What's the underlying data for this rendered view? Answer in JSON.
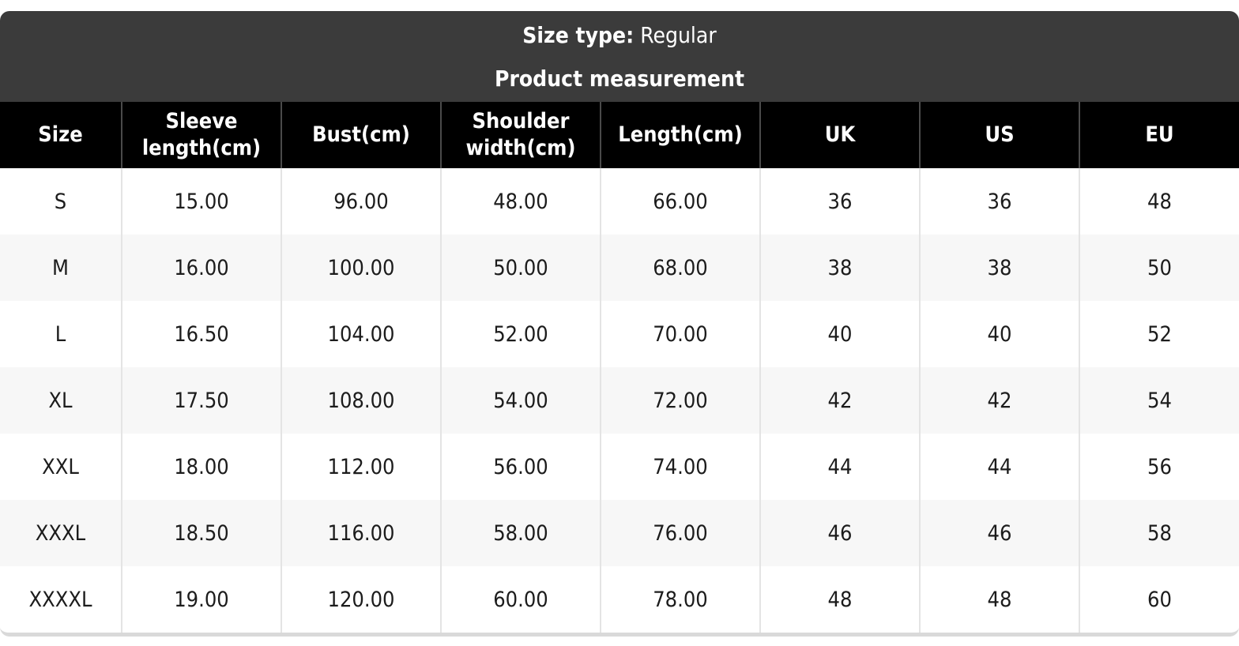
{
  "banner": {
    "size_type_label": "Size type:",
    "size_type_value": "Regular",
    "title": "Product measurement"
  },
  "table": {
    "columns": [
      "Size",
      "Sleeve length(cm)",
      "Bust(cm)",
      "Shoulder width(cm)",
      "Length(cm)",
      "UK",
      "US",
      "EU"
    ],
    "rows": [
      [
        "S",
        "15.00",
        "96.00",
        "48.00",
        "66.00",
        "36",
        "36",
        "48"
      ],
      [
        "M",
        "16.00",
        "100.00",
        "50.00",
        "68.00",
        "38",
        "38",
        "50"
      ],
      [
        "L",
        "16.50",
        "104.00",
        "52.00",
        "70.00",
        "40",
        "40",
        "52"
      ],
      [
        "XL",
        "17.50",
        "108.00",
        "54.00",
        "72.00",
        "42",
        "42",
        "54"
      ],
      [
        "XXL",
        "18.00",
        "112.00",
        "56.00",
        "74.00",
        "44",
        "44",
        "56"
      ],
      [
        "XXXL",
        "18.50",
        "116.00",
        "58.00",
        "76.00",
        "46",
        "46",
        "58"
      ],
      [
        "XXXXL",
        "19.00",
        "120.00",
        "60.00",
        "78.00",
        "48",
        "48",
        "60"
      ]
    ]
  },
  "colors": {
    "banner_bg": "#3b3b3b",
    "header_bg": "#000000",
    "header_text": "#ffffff",
    "row_bg": "#ffffff",
    "row_alt_bg": "#f7f7f7",
    "body_border": "#e4e4e4",
    "header_border": "#4a4a4a",
    "bottom_border": "#d9d9d9"
  }
}
